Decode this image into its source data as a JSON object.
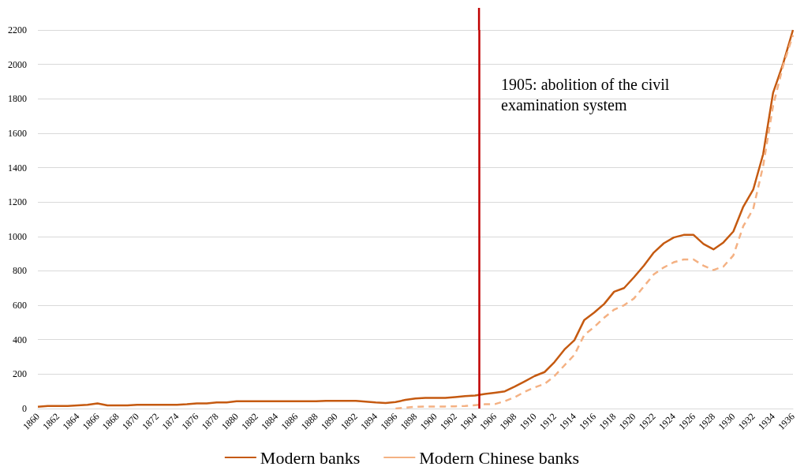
{
  "chart_data": {
    "type": "line",
    "x": [
      1860,
      1861,
      1862,
      1863,
      1864,
      1865,
      1866,
      1867,
      1868,
      1869,
      1870,
      1871,
      1872,
      1873,
      1874,
      1875,
      1876,
      1877,
      1878,
      1879,
      1880,
      1881,
      1882,
      1883,
      1884,
      1885,
      1886,
      1887,
      1888,
      1889,
      1890,
      1891,
      1892,
      1893,
      1894,
      1895,
      1896,
      1897,
      1898,
      1899,
      1900,
      1901,
      1902,
      1903,
      1904,
      1905,
      1906,
      1907,
      1908,
      1909,
      1910,
      1911,
      1912,
      1913,
      1914,
      1915,
      1916,
      1917,
      1918,
      1919,
      1920,
      1921,
      1922,
      1923,
      1924,
      1925,
      1926,
      1927,
      1928,
      1929,
      1930,
      1931,
      1932,
      1933,
      1934,
      1935,
      1936
    ],
    "series": [
      {
        "name": "Modern banks",
        "color": "#c55a11",
        "line_style": "solid",
        "values": [
          10,
          15,
          15,
          15,
          18,
          22,
          30,
          18,
          18,
          18,
          22,
          22,
          22,
          22,
          22,
          25,
          30,
          30,
          35,
          35,
          42,
          42,
          42,
          42,
          42,
          42,
          42,
          42,
          42,
          45,
          45,
          45,
          45,
          40,
          35,
          32,
          38,
          50,
          58,
          62,
          62,
          62,
          67,
          72,
          76,
          85,
          92,
          100,
          128,
          158,
          189,
          212,
          270,
          343,
          397,
          515,
          558,
          608,
          679,
          700,
          763,
          831,
          907,
          960,
          994,
          1009,
          1009,
          956,
          925,
          965,
          1029,
          1173,
          1272,
          1478,
          1835,
          2002,
          2200
        ]
      },
      {
        "name": "Modern Chinese banks",
        "color": "#f4b183",
        "line_style": "dashed",
        "values": [
          null,
          null,
          null,
          null,
          null,
          null,
          null,
          null,
          null,
          null,
          null,
          null,
          null,
          null,
          null,
          null,
          null,
          null,
          null,
          null,
          null,
          null,
          null,
          null,
          null,
          null,
          null,
          null,
          null,
          null,
          null,
          null,
          null,
          null,
          null,
          null,
          0,
          5,
          10,
          12,
          12,
          12,
          13,
          15,
          20,
          25,
          26,
          43,
          66,
          97,
          123,
          143,
          189,
          251,
          312,
          428,
          474,
          528,
          575,
          600,
          640,
          710,
          780,
          820,
          850,
          866,
          866,
          830,
          805,
          825,
          890,
          1060,
          1160,
          1410,
          1760,
          1990,
          2170
        ]
      }
    ],
    "xlim": [
      1860,
      1936
    ],
    "xticks": [
      1860,
      1862,
      1864,
      1866,
      1868,
      1870,
      1872,
      1874,
      1876,
      1878,
      1880,
      1882,
      1884,
      1886,
      1888,
      1890,
      1892,
      1894,
      1896,
      1898,
      1900,
      1902,
      1904,
      1906,
      1908,
      1910,
      1912,
      1914,
      1916,
      1918,
      1920,
      1922,
      1924,
      1926,
      1928,
      1930,
      1932,
      1934,
      1936
    ],
    "ylim": [
      0,
      2200
    ],
    "yticks": [
      0,
      200,
      400,
      600,
      800,
      1000,
      1200,
      1400,
      1600,
      1800,
      2000,
      2200
    ],
    "ref_lines": [
      {
        "axis": "x",
        "value": 1904.4,
        "label": "1905: abolition of the civil examination system",
        "color": "#c00000"
      }
    ],
    "grid": "y",
    "legend": "bottom",
    "marker": "none"
  }
}
